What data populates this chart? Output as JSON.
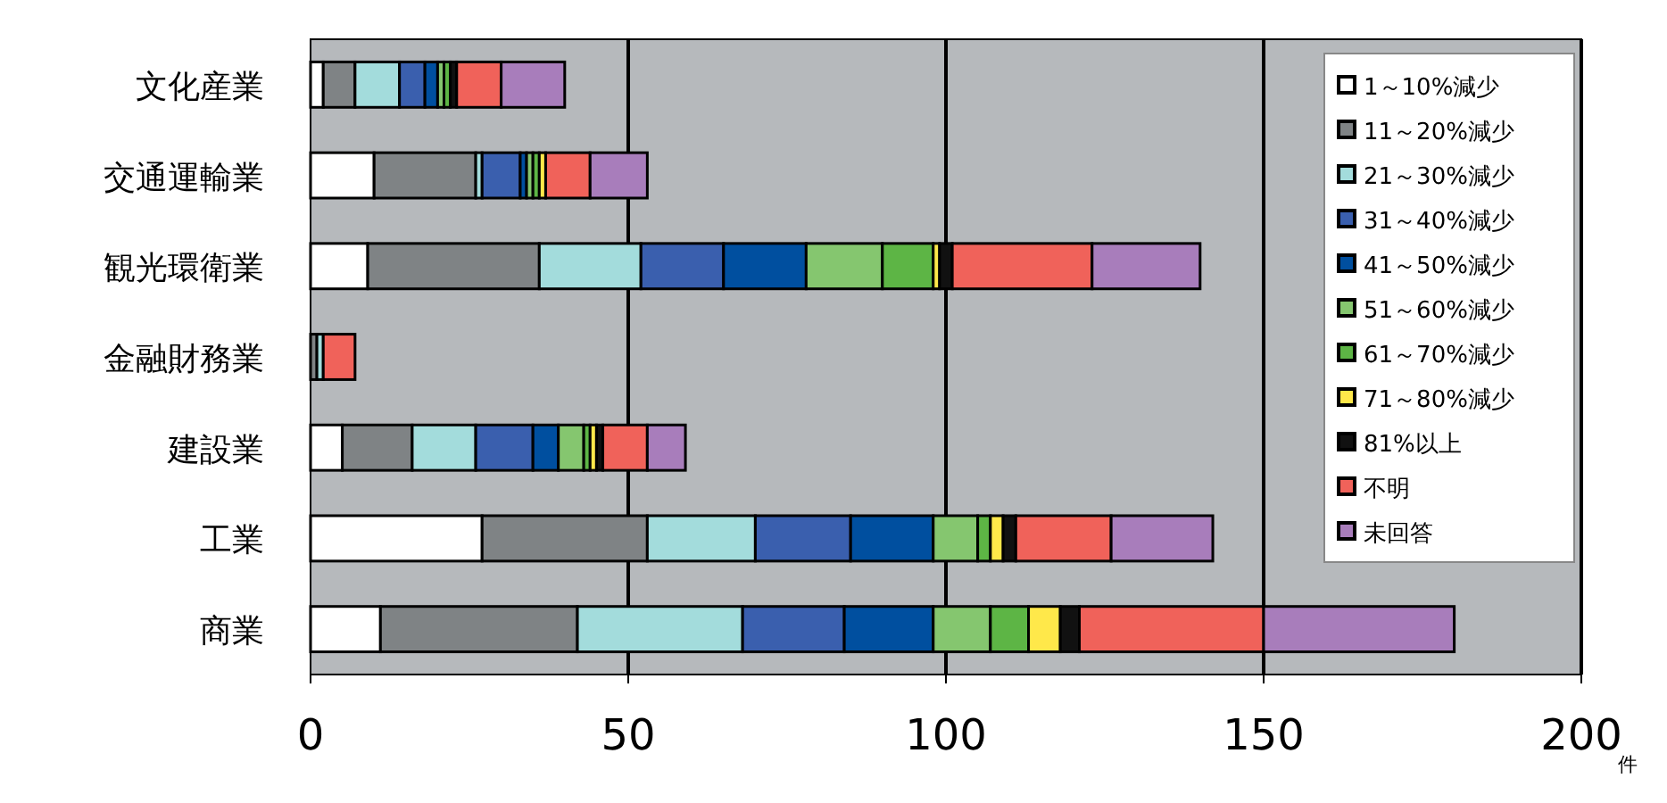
{
  "chart_data": {
    "type": "bar",
    "orientation": "horizontal",
    "stacked": true,
    "xlabel": "件",
    "categories": [
      "文化産業",
      "交通運輸業",
      "観光環衛業",
      "金融財務業",
      "建設業",
      "工業",
      "商業"
    ],
    "xlim": [
      0,
      200
    ],
    "xticks": [
      0,
      50,
      100,
      150,
      200
    ],
    "grid": "x",
    "legend": "right",
    "series": [
      {
        "name": "1～10%減少",
        "color": "#ffffff",
        "values": [
          2,
          10,
          9,
          0,
          5,
          27,
          11
        ]
      },
      {
        "name": "11～20%減少",
        "color": "#7f8385",
        "values": [
          5,
          16,
          27,
          1,
          11,
          26,
          31
        ]
      },
      {
        "name": "21～30%減少",
        "color": "#a3dcdc",
        "values": [
          7,
          1,
          16,
          1,
          10,
          17,
          26
        ]
      },
      {
        "name": "31～40%減少",
        "color": "#3a5fae",
        "values": [
          4,
          6,
          13,
          0,
          9,
          15,
          16
        ]
      },
      {
        "name": "41～50%減少",
        "color": "#004f9f",
        "values": [
          2,
          1,
          13,
          0,
          4,
          13,
          14
        ]
      },
      {
        "name": "51～60%減少",
        "color": "#85c66f",
        "values": [
          1,
          1,
          12,
          0,
          4,
          7,
          9
        ]
      },
      {
        "name": "61～70%減少",
        "color": "#5db545",
        "values": [
          1,
          1,
          8,
          0,
          1,
          2,
          6
        ]
      },
      {
        "name": "71～80%減少",
        "color": "#ffe84a",
        "values": [
          0,
          1,
          1,
          0,
          1,
          2,
          5
        ]
      },
      {
        "name": "81%以上",
        "color": "#111111",
        "values": [
          1,
          0,
          2,
          0,
          1,
          2,
          3
        ]
      },
      {
        "name": "不明",
        "color": "#f0625a",
        "values": [
          7,
          7,
          22,
          5,
          7,
          15,
          29
        ]
      },
      {
        "name": "未回答",
        "color": "#a87dbb",
        "values": [
          10,
          9,
          17,
          0,
          6,
          16,
          30
        ]
      }
    ]
  }
}
